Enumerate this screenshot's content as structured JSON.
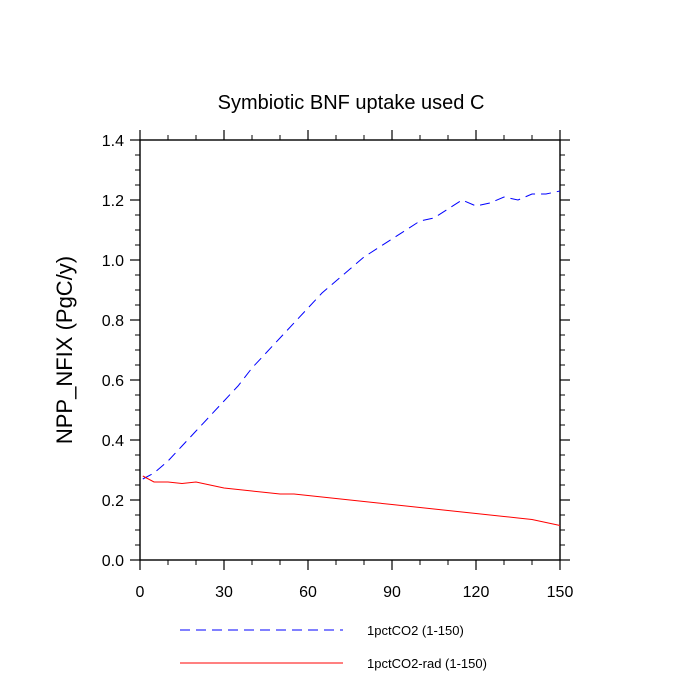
{
  "chart_data": {
    "type": "line",
    "title": "Symbiotic BNF uptake used C",
    "xlabel": "",
    "ylabel": "NPP_NFIX  (PgC/y)",
    "xlim": [
      0,
      150
    ],
    "ylim": [
      0.0,
      1.4
    ],
    "xticks": [
      0,
      30,
      60,
      90,
      120,
      150
    ],
    "xtick_labels": [
      "0",
      "30",
      "60",
      "90",
      "120",
      "150"
    ],
    "yticks": [
      0.0,
      0.2,
      0.4,
      0.6,
      0.8,
      1.0,
      1.2,
      1.4
    ],
    "ytick_labels": [
      "0.0",
      "0.2",
      "0.4",
      "0.6",
      "0.8",
      "1.0",
      "1.2",
      "1.4"
    ],
    "grid": false,
    "legend_position": "bottom",
    "series": [
      {
        "name": "1pctCO2 (1-150)",
        "color": "#0000ff",
        "style": "dashed",
        "x": [
          1,
          5,
          10,
          15,
          20,
          25,
          30,
          35,
          40,
          45,
          50,
          55,
          60,
          65,
          70,
          75,
          80,
          85,
          90,
          95,
          100,
          105,
          110,
          115,
          120,
          125,
          130,
          135,
          140,
          145,
          150
        ],
        "y": [
          0.27,
          0.29,
          0.33,
          0.38,
          0.43,
          0.48,
          0.53,
          0.58,
          0.64,
          0.69,
          0.74,
          0.79,
          0.84,
          0.89,
          0.93,
          0.97,
          1.01,
          1.04,
          1.07,
          1.1,
          1.13,
          1.14,
          1.17,
          1.2,
          1.18,
          1.19,
          1.21,
          1.2,
          1.22,
          1.22,
          1.23
        ]
      },
      {
        "name": "1pctCO2-rad (1-150)",
        "color": "#ff0000",
        "style": "solid",
        "x": [
          1,
          5,
          10,
          15,
          20,
          25,
          30,
          35,
          40,
          45,
          50,
          55,
          60,
          65,
          70,
          75,
          80,
          85,
          90,
          95,
          100,
          105,
          110,
          115,
          120,
          125,
          130,
          135,
          140,
          145,
          150
        ],
        "y": [
          0.28,
          0.26,
          0.26,
          0.255,
          0.26,
          0.25,
          0.24,
          0.235,
          0.23,
          0.225,
          0.22,
          0.22,
          0.215,
          0.21,
          0.205,
          0.2,
          0.195,
          0.19,
          0.185,
          0.18,
          0.175,
          0.17,
          0.165,
          0.16,
          0.155,
          0.15,
          0.145,
          0.14,
          0.135,
          0.125,
          0.115
        ]
      }
    ]
  }
}
